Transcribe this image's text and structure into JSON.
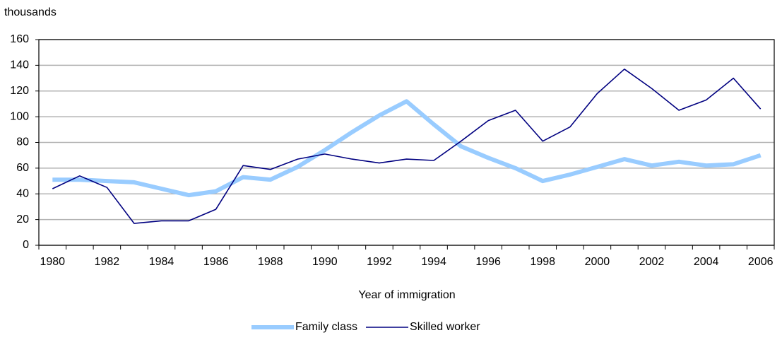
{
  "chart_data": {
    "type": "line",
    "y_label": "thousands",
    "x_label": "Year of immigration",
    "categories": [
      "1980",
      null,
      "1982",
      null,
      "1984",
      null,
      "1986",
      null,
      "1988",
      null,
      "1990",
      null,
      "1992",
      null,
      "1994",
      null,
      "1996",
      null,
      "1998",
      null,
      "2000",
      null,
      "2002",
      null,
      "2004",
      null,
      "2006"
    ],
    "series": [
      {
        "name": "Family class",
        "color": "#99ccff",
        "values": [
          51,
          51,
          50,
          49,
          44,
          39,
          42,
          53,
          51,
          61,
          74,
          88,
          101,
          112,
          94,
          77,
          68,
          60,
          50,
          55,
          61,
          67,
          62,
          65,
          62,
          63,
          70
        ]
      },
      {
        "name": "Skilled worker",
        "color": "#000080",
        "values": [
          44,
          54,
          45,
          17,
          19,
          19,
          28,
          62,
          59,
          67,
          71,
          67,
          64,
          67,
          66,
          81,
          97,
          105,
          81,
          92,
          118,
          137,
          122,
          105,
          113,
          130,
          106
        ]
      }
    ],
    "ylim": [
      0,
      160
    ],
    "yticks": [
      0,
      20,
      40,
      60,
      80,
      100,
      120,
      140,
      160
    ],
    "grid": true,
    "legend": "bottom"
  }
}
